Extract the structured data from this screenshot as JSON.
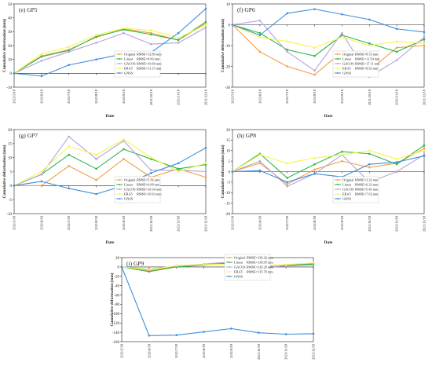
{
  "colors": {
    "Original": "#f2a044",
    "Linear": "#2db64b",
    "GACOS": "#b7a2dc",
    "ERA5": "#f5f54c",
    "GNSS": "#3d8fdc",
    "axis": "#222222",
    "grid": "#e2e2e2"
  },
  "chart_data": [
    {
      "type": "line",
      "panel_label": "(e) GP5",
      "x": [
        "2021/5/18",
        "2021/6/18",
        "2021/7/18",
        "2021/8/18",
        "2021/9/18",
        "2021/10/18",
        "2021/11/18",
        "2021/12/18"
      ],
      "xlabel": "Date",
      "ylabel": "Cumulative deformation (mm)",
      "ylim": [
        -10,
        50
      ],
      "yticks": [
        -10,
        0,
        10,
        20,
        30,
        40,
        50
      ],
      "legend_position": "bottom-right",
      "series": [
        {
          "name": "Original",
          "rmse": "RMSE=12.89 mm",
          "values": [
            0,
            12.5,
            17,
            26,
            32,
            29,
            24,
            36
          ]
        },
        {
          "name": "Linear",
          "rmse": "RMSE=9.83 mm",
          "values": [
            0,
            12,
            16.5,
            26.5,
            31.5,
            28,
            24,
            37
          ]
        },
        {
          "name": "GACOS",
          "rmse": "RMSE=10.69 mm",
          "values": [
            0,
            9,
            15.5,
            22,
            29,
            21,
            22,
            33
          ]
        },
        {
          "name": "ERA5",
          "rmse": "RMSE=11.15 mm",
          "values": [
            0,
            14,
            19,
            27.5,
            32.5,
            31,
            25.5,
            35
          ]
        },
        {
          "name": "GNSS",
          "rmse": "",
          "values": [
            0,
            -2,
            6,
            10,
            14,
            15,
            29,
            46.5
          ]
        }
      ]
    },
    {
      "type": "line",
      "panel_label": "(f) GP6",
      "x": [
        "2021/5/18",
        "2021/6/18",
        "2021/7/18",
        "2021/8/18",
        "2021/9/18",
        "2021/10/18",
        "2021/11/18",
        "2021/12/18"
      ],
      "xlabel": "Date",
      "ylabel": "Cumulative deformation (mm)",
      "ylim": [
        -30,
        10
      ],
      "yticks": [
        -30,
        -20,
        -10,
        0,
        10
      ],
      "legend_position": "bottom-right",
      "series": [
        {
          "name": "Original",
          "rmse": "RMSE=8.53 mm",
          "values": [
            0,
            -13,
            -20,
            -24,
            -13,
            -22,
            -11,
            -10
          ]
        },
        {
          "name": "Linear",
          "rmse": "RMSE=11.50 mm",
          "values": [
            0,
            -4,
            -12,
            -15,
            -5,
            -9,
            -13,
            -7
          ]
        },
        {
          "name": "GACOS",
          "rmse": "RMSE=17.11 mm",
          "values": [
            0,
            2,
            -13,
            -22,
            -4,
            -25,
            -17,
            -6
          ]
        },
        {
          "name": "ERA5",
          "rmse": "RMSE=8.92 mm",
          "values": [
            0,
            -6,
            -8,
            -11,
            -6,
            -10,
            -8,
            -9
          ]
        },
        {
          "name": "GNSS",
          "rmse": "",
          "values": [
            0,
            -5,
            5.5,
            7.5,
            5,
            2.5,
            -2,
            -3.5
          ]
        }
      ]
    },
    {
      "type": "line",
      "panel_label": "(g) GP7",
      "x": [
        "2021/5/18",
        "2021/6/18",
        "2021/7/18",
        "2021/8/18",
        "2021/9/18",
        "2021/10/18",
        "2021/11/18",
        "2021/12/18"
      ],
      "xlabel": "Date",
      "ylabel": "Cumulative deformation (mm)",
      "ylim": [
        -10,
        20
      ],
      "yticks": [
        -10,
        -5,
        0,
        5,
        10,
        15,
        20
      ],
      "legend_position": "bottom-right",
      "series": [
        {
          "name": "Original",
          "rmse": "RMSE=5.56 mm",
          "values": [
            0,
            0,
            7,
            2,
            9.5,
            3,
            6,
            3
          ]
        },
        {
          "name": "Linear",
          "rmse": "RMSE=6.09 mm",
          "values": [
            0,
            4,
            11,
            6,
            13,
            9.5,
            6,
            7.5
          ]
        },
        {
          "name": "GACOS",
          "rmse": "RMSE=10.34 mm",
          "values": [
            0,
            4,
            17.5,
            9.5,
            16,
            5.5,
            5.5,
            5
          ]
        },
        {
          "name": "ERA5",
          "rmse": "RMSE=10.63 mm",
          "values": [
            0,
            5,
            14,
            11,
            16.5,
            10,
            5,
            8
          ]
        },
        {
          "name": "GNSS",
          "rmse": "",
          "values": [
            0,
            1.5,
            -1,
            -3,
            0,
            4.5,
            8,
            13.5
          ]
        }
      ]
    },
    {
      "type": "line",
      "panel_label": "(h) GP8",
      "x": [
        "2021/5/18",
        "2021/6/18",
        "2021/7/18",
        "2021/8/18",
        "2021/9/18",
        "2021/10/18",
        "2021/11/18",
        "2021/12/18"
      ],
      "xlabel": "Date",
      "ylabel": "Cumulative deformation (mm)",
      "ylim": [
        -20,
        20
      ],
      "yticks": [
        -20,
        -15,
        -10,
        -5,
        0,
        5,
        10,
        15,
        20
      ],
      "legend_position": "bottom-right",
      "series": [
        {
          "name": "Original",
          "rmse": "RMSE=3.32 mm",
          "values": [
            0,
            4,
            -6,
            1,
            5,
            2,
            4,
            11
          ]
        },
        {
          "name": "Linear",
          "rmse": "RMSE=6.33 mm",
          "values": [
            0,
            8.5,
            -3,
            3.5,
            9.5,
            8.5,
            3.5,
            12.5
          ]
        },
        {
          "name": "GACOS",
          "rmse": "RMSE=5.43 mm",
          "values": [
            0,
            5,
            -7,
            -1,
            8,
            -5,
            0,
            8
          ]
        },
        {
          "name": "ERA5",
          "rmse": "RMSE=7.62 mm",
          "values": [
            0,
            8,
            4,
            6.5,
            8,
            10,
            6,
            10
          ]
        },
        {
          "name": "GNSS",
          "rmse": "",
          "values": [
            0,
            0.5,
            -5,
            -1,
            -2.5,
            3.5,
            4.5,
            7.5
          ]
        }
      ]
    },
    {
      "type": "line",
      "panel_label": "(i) GP9",
      "x": [
        "2021/5/18",
        "2021/6/18",
        "2021/7/18",
        "2021/8/18",
        "2021/9/18",
        "2021/10/18",
        "2021/11/18",
        "2021/12/18"
      ],
      "xlabel": "Date",
      "ylabel": "Cumulative deformation (mm)",
      "ylim": [
        -160,
        20
      ],
      "yticks": [
        -160,
        -140,
        -120,
        -100,
        -80,
        -60,
        -40,
        -20,
        0,
        20
      ],
      "legend_position": "middle-right",
      "series": [
        {
          "name": "Original",
          "rmse": "RMSE=136.42 mm",
          "values": [
            0,
            -8,
            1,
            5,
            8,
            1,
            2,
            8
          ]
        },
        {
          "name": "Linear",
          "rmse": "RMSE=138.95 mm",
          "values": [
            0,
            -10,
            0,
            4,
            9,
            -5,
            4,
            6
          ]
        },
        {
          "name": "GACOS",
          "rmse": "RMSE=120.29 mm",
          "values": [
            0,
            -5,
            2,
            6,
            11,
            -2,
            2,
            4
          ]
        },
        {
          "name": "ERA5",
          "rmse": "RMSE=115.70 mm",
          "values": [
            0,
            -6,
            3,
            5,
            6,
            3,
            5,
            9
          ]
        },
        {
          "name": "GNSS",
          "rmse": "",
          "values": [
            0,
            -147,
            -146,
            -139,
            -132,
            -141,
            -144,
            -143
          ]
        }
      ]
    }
  ]
}
